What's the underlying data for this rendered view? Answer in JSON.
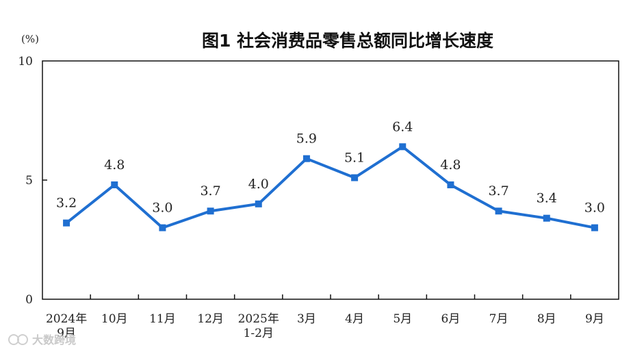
{
  "chart_data": {
    "type": "line",
    "title": "图1 社会消费品零售总额同比增长速度",
    "unit": "(%)",
    "ylim": [
      0,
      10
    ],
    "yticks": [
      "0",
      "5",
      "10"
    ],
    "grid": false,
    "categories": [
      [
        "2024年",
        "9月"
      ],
      [
        "10月"
      ],
      [
        "11月"
      ],
      [
        "12月"
      ],
      [
        "2025年",
        "1-2月"
      ],
      [
        "3月"
      ],
      [
        "4月"
      ],
      [
        "5月"
      ],
      [
        "6月"
      ],
      [
        "7月"
      ],
      [
        "8月"
      ],
      [
        "9月"
      ]
    ],
    "values": [
      3.2,
      4.8,
      3.0,
      3.7,
      4.0,
      5.9,
      5.1,
      6.4,
      4.8,
      3.7,
      3.4,
      3.0
    ],
    "labels": [
      "3.2",
      "4.8",
      "3.0",
      "3.7",
      "4.0",
      "5.9",
      "5.1",
      "6.4",
      "4.8",
      "3.7",
      "3.4",
      "3.0"
    ],
    "line_color": "#1f6fd1"
  },
  "watermark": "大数跨境"
}
